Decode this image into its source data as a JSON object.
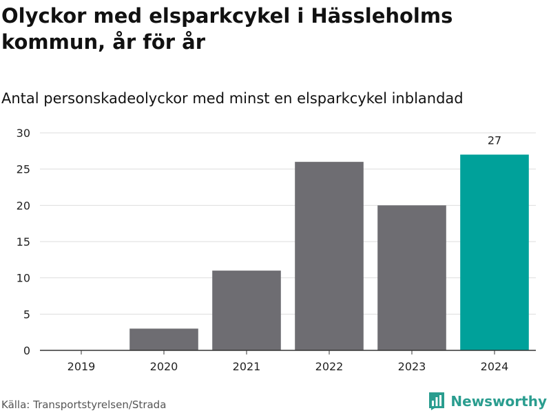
{
  "title": "Olyckor med elsparkcykel i Hässleholms kommun, år för år",
  "subtitle": "Antal personskadeolyckor med minst en elsparkcykel inblandad",
  "source": "Källa: Transportstyrelsen/Strada",
  "brand": {
    "name": "Newsworthy",
    "logo_icon": "bar-chart-logo-icon"
  },
  "colors": {
    "bar": "#6e6d72",
    "highlight": "#00a19a",
    "grid": "#dddddd",
    "axis": "#333333",
    "brand": "#2a9d8f"
  },
  "chart_data": {
    "type": "bar",
    "categories": [
      "2019",
      "2020",
      "2021",
      "2022",
      "2023",
      "2024"
    ],
    "values": [
      0,
      3,
      11,
      26,
      20,
      27
    ],
    "highlight_index": 5,
    "data_labels": [
      {
        "index": 5,
        "text": "27"
      }
    ],
    "ylim": [
      0,
      30
    ],
    "yticks": [
      "0",
      "5",
      "10",
      "15",
      "20",
      "25",
      "30"
    ],
    "grid": true,
    "xlabel": "",
    "ylabel": ""
  }
}
